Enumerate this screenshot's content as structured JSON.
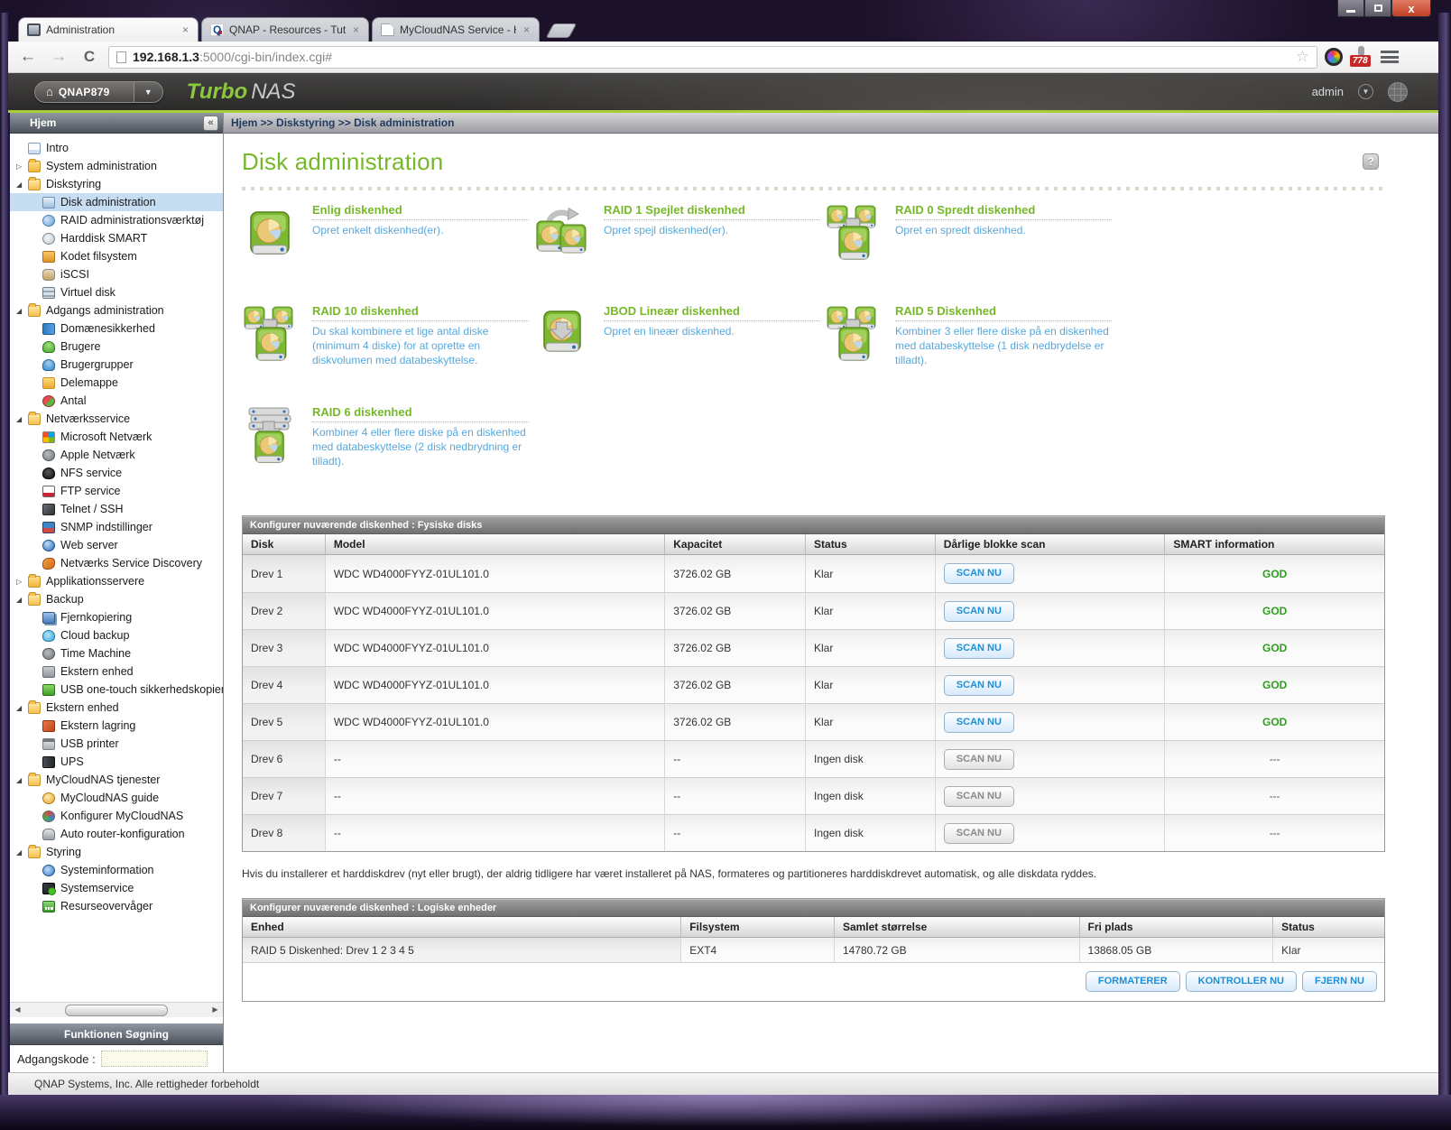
{
  "browser": {
    "tabs": [
      {
        "title": "Administration",
        "favicon": "monitor-icon",
        "active": true
      },
      {
        "title": "QNAP - Resources - Tutor",
        "favicon": "qnap-icon",
        "active": false
      },
      {
        "title": "MyCloudNAS Service - Ho",
        "favicon": "page-icon",
        "active": false
      }
    ],
    "url_host": "192.168.1.3",
    "url_rest": ":5000/cgi-bin/index.cgi#",
    "extension_badge": "778"
  },
  "app_header": {
    "device_button": "QNAP879",
    "brand_turbo": "Turbo",
    "brand_nas": "NAS",
    "user": "admin"
  },
  "sidebar": {
    "title": "Hjem",
    "collapse_glyph": "«",
    "search_title": "Funktionen Søgning",
    "password_label": "Adgangskode :",
    "tree": [
      {
        "label": "Intro",
        "kind": "leaf",
        "depth": 0,
        "icon": "intro-icon"
      },
      {
        "label": "System administration",
        "kind": "folder",
        "state": "collapsed",
        "depth": 0,
        "icon": "folder-icon"
      },
      {
        "label": "Diskstyring",
        "kind": "folder",
        "state": "expanded",
        "depth": 0,
        "icon": "folder-open-icon"
      },
      {
        "label": "Disk administration",
        "kind": "leaf",
        "depth": 1,
        "icon": "disk-admin-icon",
        "selected": true
      },
      {
        "label": "RAID administrationsværktøj",
        "kind": "leaf",
        "depth": 1,
        "icon": "raid-tool-icon"
      },
      {
        "label": "Harddisk SMART",
        "kind": "leaf",
        "depth": 1,
        "icon": "smart-icon"
      },
      {
        "label": "Kodet filsystem",
        "kind": "leaf",
        "depth": 1,
        "icon": "encrypted-fs-icon"
      },
      {
        "label": "iSCSI",
        "kind": "leaf",
        "depth": 1,
        "icon": "iscsi-icon"
      },
      {
        "label": "Virtuel disk",
        "kind": "leaf",
        "depth": 1,
        "icon": "virtual-disk-icon"
      },
      {
        "label": "Adgangs administration",
        "kind": "folder",
        "state": "expanded",
        "depth": 0,
        "icon": "folder-open-icon"
      },
      {
        "label": "Domænesikkerhed",
        "kind": "leaf",
        "depth": 1,
        "icon": "domain-security-icon"
      },
      {
        "label": "Brugere",
        "kind": "leaf",
        "depth": 1,
        "icon": "users-icon"
      },
      {
        "label": "Brugergrupper",
        "kind": "leaf",
        "depth": 1,
        "icon": "user-groups-icon"
      },
      {
        "label": "Delemappe",
        "kind": "leaf",
        "depth": 1,
        "icon": "shared-folder-icon"
      },
      {
        "label": "Antal",
        "kind": "leaf",
        "depth": 1,
        "icon": "quota-icon"
      },
      {
        "label": "Netværksservice",
        "kind": "folder",
        "state": "expanded",
        "depth": 0,
        "icon": "folder-open-icon"
      },
      {
        "label": "Microsoft Netværk",
        "kind": "leaf",
        "depth": 1,
        "icon": "ms-network-icon"
      },
      {
        "label": "Apple Netværk",
        "kind": "leaf",
        "depth": 1,
        "icon": "apple-icon"
      },
      {
        "label": "NFS service",
        "kind": "leaf",
        "depth": 1,
        "icon": "nfs-icon"
      },
      {
        "label": "FTP service",
        "kind": "leaf",
        "depth": 1,
        "icon": "ftp-icon"
      },
      {
        "label": "Telnet / SSH",
        "kind": "leaf",
        "depth": 1,
        "icon": "telnet-icon"
      },
      {
        "label": "SNMP indstillinger",
        "kind": "leaf",
        "depth": 1,
        "icon": "snmp-icon"
      },
      {
        "label": "Web server",
        "kind": "leaf",
        "depth": 1,
        "icon": "web-server-icon"
      },
      {
        "label": "Netværks Service Discovery",
        "kind": "leaf",
        "depth": 1,
        "icon": "discovery-icon"
      },
      {
        "label": "Applikationsservere",
        "kind": "folder",
        "state": "collapsed",
        "depth": 0,
        "icon": "folder-icon"
      },
      {
        "label": "Backup",
        "kind": "folder",
        "state": "expanded",
        "depth": 0,
        "icon": "folder-open-icon"
      },
      {
        "label": "Fjernkopiering",
        "kind": "leaf",
        "depth": 1,
        "icon": "replication-icon"
      },
      {
        "label": "Cloud backup",
        "kind": "leaf",
        "depth": 1,
        "icon": "cloud-backup-icon"
      },
      {
        "label": "Time Machine",
        "kind": "leaf",
        "depth": 1,
        "icon": "apple-icon"
      },
      {
        "label": "Ekstern enhed",
        "kind": "leaf",
        "depth": 1,
        "icon": "external-device-icon"
      },
      {
        "label": "USB one-touch sikkerhedskopierin",
        "kind": "leaf",
        "depth": 1,
        "icon": "usb-icon"
      },
      {
        "label": "Ekstern enhed",
        "kind": "folder",
        "state": "expanded",
        "depth": 0,
        "icon": "folder-open-icon"
      },
      {
        "label": "Ekstern lagring",
        "kind": "leaf",
        "depth": 1,
        "icon": "external-storage-icon"
      },
      {
        "label": "USB printer",
        "kind": "leaf",
        "depth": 1,
        "icon": "printer-icon"
      },
      {
        "label": "UPS",
        "kind": "leaf",
        "depth": 1,
        "icon": "ups-icon"
      },
      {
        "label": "MyCloudNAS tjenester",
        "kind": "folder",
        "state": "expanded",
        "depth": 0,
        "icon": "folder-open-icon"
      },
      {
        "label": "MyCloudNAS guide",
        "kind": "leaf",
        "depth": 1,
        "icon": "guide-icon"
      },
      {
        "label": "Konfigurer MyCloudNAS",
        "kind": "leaf",
        "depth": 1,
        "icon": "mycloudnas-icon"
      },
      {
        "label": "Auto router-konfiguration",
        "kind": "leaf",
        "depth": 1,
        "icon": "router-icon"
      },
      {
        "label": "Styring",
        "kind": "folder",
        "state": "expanded",
        "depth": 0,
        "icon": "folder-open-icon"
      },
      {
        "label": "Systeminformation",
        "kind": "leaf",
        "depth": 1,
        "icon": "sysinfo-icon"
      },
      {
        "label": "Systemservice",
        "kind": "leaf",
        "depth": 1,
        "icon": "sysservice-icon"
      },
      {
        "label": "Resurseovervåger",
        "kind": "leaf",
        "depth": 1,
        "icon": "resource-monitor-icon"
      }
    ]
  },
  "main": {
    "breadcrumb": "Hjem >> Diskstyring >> Disk administration",
    "title": "Disk administration",
    "options": [
      {
        "title": "Enlig diskenhed",
        "desc": "Opret enkelt diskenhed(er).",
        "variant": "single",
        "icon": "single-disk-icon"
      },
      {
        "title": "RAID 1 Spejlet diskenhed",
        "desc": "Opret spejl diskenhed(er).",
        "variant": "mirror",
        "icon": "raid1-disk-icon"
      },
      {
        "title": "RAID 0 Spredt diskenhed",
        "desc": "Opret en spredt diskenhed.",
        "variant": "cluster",
        "icon": "raid0-disk-icon"
      },
      {
        "title": "RAID 10 diskenhed",
        "desc": "Du skal kombinere et lige antal diske (minimum 4 diske) for at oprette en diskvolumen med databeskyttelse.",
        "variant": "cluster",
        "icon": "raid10-disk-icon"
      },
      {
        "title": "JBOD Lineær diskenhed",
        "desc": "Opret en lineær diskenhed.",
        "variant": "jbod",
        "icon": "jbod-disk-icon"
      },
      {
        "title": "RAID 5 Diskenhed",
        "desc": "Kombiner 3 eller flere diske på en diskenhed med databeskyttelse (1 disk nedbrydelse er tilladt).",
        "variant": "cluster",
        "icon": "raid5-disk-icon"
      },
      {
        "title": "RAID 6 diskenhed",
        "desc": "Kombiner 4 eller flere diske på en diskenhed med databeskyttelse (2 disk nedbrydning er tilladt).",
        "variant": "stack",
        "icon": "raid6-disk-icon"
      }
    ],
    "physical_table": {
      "title": "Konfigurer nuværende diskenhed : Fysiske disks",
      "columns": [
        "Disk",
        "Model",
        "Kapacitet",
        "Status",
        "Dårlige blokke scan",
        "SMART information"
      ],
      "scan_label": "SCAN NU",
      "rows": [
        {
          "disk": "Drev 1",
          "model": "WDC WD4000FYYZ-01UL101.0",
          "capacity": "3726.02 GB",
          "status": "Klar",
          "smart": "GOD",
          "active": true
        },
        {
          "disk": "Drev 2",
          "model": "WDC WD4000FYYZ-01UL101.0",
          "capacity": "3726.02 GB",
          "status": "Klar",
          "smart": "GOD",
          "active": true
        },
        {
          "disk": "Drev 3",
          "model": "WDC WD4000FYYZ-01UL101.0",
          "capacity": "3726.02 GB",
          "status": "Klar",
          "smart": "GOD",
          "active": true
        },
        {
          "disk": "Drev 4",
          "model": "WDC WD4000FYYZ-01UL101.0",
          "capacity": "3726.02 GB",
          "status": "Klar",
          "smart": "GOD",
          "active": true
        },
        {
          "disk": "Drev 5",
          "model": "WDC WD4000FYYZ-01UL101.0",
          "capacity": "3726.02 GB",
          "status": "Klar",
          "smart": "GOD",
          "active": true
        },
        {
          "disk": "Drev 6",
          "model": "--",
          "capacity": "--",
          "status": "Ingen disk",
          "smart": "---",
          "active": false
        },
        {
          "disk": "Drev 7",
          "model": "--",
          "capacity": "--",
          "status": "Ingen disk",
          "smart": "---",
          "active": false
        },
        {
          "disk": "Drev 8",
          "model": "--",
          "capacity": "--",
          "status": "Ingen disk",
          "smart": "---",
          "active": false
        }
      ]
    },
    "note": "Hvis du installerer et harddiskdrev (nyt eller brugt), der aldrig tidligere har været installeret på NAS, formateres og partitioneres harddiskdrevet automatisk, og alle diskdata ryddes.",
    "logical_table": {
      "title": "Konfigurer nuværende diskenhed : Logiske enheder",
      "columns": [
        "Enhed",
        "Filsystem",
        "Samlet størrelse",
        "Fri plads",
        "Status"
      ],
      "rows": [
        {
          "unit": "RAID 5 Diskenhed: Drev 1 2 3 4 5",
          "filesystem": "EXT4",
          "total": "14780.72 GB",
          "free": "13868.05 GB",
          "status": "Klar"
        }
      ]
    },
    "action_buttons": [
      "FORMATERER",
      "KONTROLLER NU",
      "FJERN NU"
    ]
  },
  "footer": {
    "text": "QNAP Systems, Inc. Alle rettigheder forbeholdt"
  },
  "colors": {
    "accent_green": "#76b82a",
    "brand_green": "#8dc63f",
    "link_blue": "#58a8dc",
    "status_good_green": "#2f9e1f",
    "button_blue": "#1e8fd5",
    "selected_tree_blue": "#c6ddf2",
    "header_line_green": "#a6ce39"
  }
}
